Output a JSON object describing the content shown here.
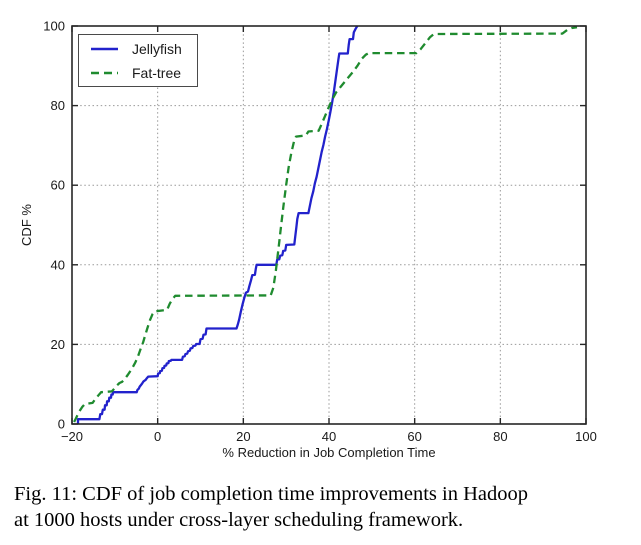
{
  "figure": {
    "caption_line1": "Fig. 11: CDF of job completion time improvements in Hadoop",
    "caption_line2": "at 1000 hosts under cross-layer scheduling framework."
  },
  "colors": {
    "jellyfish_line": "#2222cc",
    "fattree_line": "#1f8b2f",
    "grid": "#999999",
    "frame": "#262626",
    "text": "#1a1a1a"
  },
  "chart_data": {
    "type": "line",
    "title": "",
    "xlabel": "% Reduction in Job Completion Time",
    "ylabel": "CDF %",
    "xlim": [
      -20,
      100
    ],
    "ylim": [
      0,
      100
    ],
    "xticks": [
      -20,
      0,
      20,
      40,
      60,
      80,
      100
    ],
    "xtick_labels": [
      "−20",
      "0",
      "20",
      "40",
      "60",
      "80",
      "100"
    ],
    "yticks": [
      0,
      20,
      40,
      60,
      80,
      100
    ],
    "ytick_labels": [
      "0",
      "20",
      "40",
      "60",
      "80",
      "100"
    ],
    "grid": true,
    "grid_style": "dotted",
    "legend_position": "upper-left",
    "series": [
      {
        "name": "Jellyfish",
        "color": "#2222cc",
        "style": "solid",
        "points": [
          [
            -18.6,
            0
          ],
          [
            -18.6,
            1.2
          ],
          [
            -13.6,
            1.2
          ],
          [
            -13.4,
            2.5
          ],
          [
            -13.0,
            2.5
          ],
          [
            -12.8,
            3.6
          ],
          [
            -12.4,
            3.6
          ],
          [
            -12.3,
            4.7
          ],
          [
            -11.9,
            4.7
          ],
          [
            -11.8,
            5.7
          ],
          [
            -11.4,
            5.7
          ],
          [
            -11.3,
            6.6
          ],
          [
            -10.9,
            6.6
          ],
          [
            -10.8,
            7.4
          ],
          [
            -10.5,
            7.4
          ],
          [
            -10.4,
            8.0
          ],
          [
            -4.9,
            8.0
          ],
          [
            -4.7,
            8.6
          ],
          [
            -4.4,
            8.9
          ],
          [
            -4.2,
            9.4
          ],
          [
            -3.9,
            9.8
          ],
          [
            -3.6,
            10.2
          ],
          [
            -3.3,
            10.7
          ],
          [
            -2.8,
            11.1
          ],
          [
            -2.6,
            11.4
          ],
          [
            -2.2,
            11.9
          ],
          [
            0.0,
            12.0
          ],
          [
            0.1,
            12.7
          ],
          [
            0.5,
            12.8
          ],
          [
            0.6,
            13.3
          ],
          [
            1.0,
            13.4
          ],
          [
            1.1,
            14.0
          ],
          [
            1.5,
            14.1
          ],
          [
            1.6,
            14.6
          ],
          [
            2.0,
            14.7
          ],
          [
            2.1,
            15.2
          ],
          [
            2.5,
            15.3
          ],
          [
            2.6,
            15.8
          ],
          [
            3.1,
            15.9
          ],
          [
            3.2,
            16.1
          ],
          [
            5.7,
            16.1
          ],
          [
            5.9,
            16.9
          ],
          [
            6.3,
            17.0
          ],
          [
            6.5,
            17.6
          ],
          [
            6.9,
            17.7
          ],
          [
            7.1,
            18.3
          ],
          [
            7.5,
            18.4
          ],
          [
            7.7,
            19.0
          ],
          [
            8.1,
            19.1
          ],
          [
            8.3,
            19.6
          ],
          [
            8.8,
            19.7
          ],
          [
            9.0,
            20.1
          ],
          [
            9.8,
            20.1
          ],
          [
            10.0,
            21.3
          ],
          [
            10.5,
            21.4
          ],
          [
            10.7,
            22.4
          ],
          [
            11.2,
            22.5
          ],
          [
            11.4,
            24.0
          ],
          [
            18.4,
            24.0
          ],
          [
            18.7,
            25.0
          ],
          [
            19.0,
            26.2
          ],
          [
            19.4,
            28.2
          ],
          [
            19.8,
            30.0
          ],
          [
            20.2,
            31.6
          ],
          [
            20.6,
            33.0
          ],
          [
            21.1,
            33.3
          ],
          [
            21.4,
            34.6
          ],
          [
            21.8,
            36.1
          ],
          [
            22.1,
            37.4
          ],
          [
            22.7,
            37.5
          ],
          [
            22.9,
            39.0
          ],
          [
            23.1,
            40.0
          ],
          [
            27.7,
            40.0
          ],
          [
            27.9,
            41.3
          ],
          [
            28.4,
            41.4
          ],
          [
            28.6,
            42.3
          ],
          [
            29.1,
            42.4
          ],
          [
            29.3,
            43.5
          ],
          [
            29.8,
            43.6
          ],
          [
            30.0,
            45.0
          ],
          [
            31.9,
            45.1
          ],
          [
            32.1,
            47.0
          ],
          [
            32.4,
            49.5
          ],
          [
            32.6,
            51.5
          ],
          [
            32.9,
            53.0
          ],
          [
            35.2,
            53.0
          ],
          [
            35.5,
            54.6
          ],
          [
            35.9,
            56.7
          ],
          [
            36.3,
            58.4
          ],
          [
            36.7,
            60.5
          ],
          [
            37.1,
            62.1
          ],
          [
            37.5,
            64.2
          ],
          [
            37.9,
            66.3
          ],
          [
            38.3,
            68.4
          ],
          [
            38.7,
            70.1
          ],
          [
            39.1,
            72.2
          ],
          [
            39.5,
            74.1
          ],
          [
            39.9,
            76.1
          ],
          [
            40.3,
            78.3
          ],
          [
            40.7,
            80.6
          ],
          [
            41.1,
            83.2
          ],
          [
            41.5,
            86.2
          ],
          [
            41.9,
            89.3
          ],
          [
            42.2,
            91.6
          ],
          [
            42.4,
            93.1
          ],
          [
            44.4,
            93.1
          ],
          [
            44.6,
            95.2
          ],
          [
            44.8,
            96.7
          ],
          [
            45.6,
            96.7
          ],
          [
            45.8,
            98.4
          ],
          [
            46.2,
            99.3
          ],
          [
            46.6,
            100.0
          ]
        ]
      },
      {
        "name": "Fat-tree",
        "color": "#1f8b2f",
        "style": "dashed",
        "points": [
          [
            -19.5,
            0.5
          ],
          [
            -19.0,
            1.6
          ],
          [
            -18.4,
            3.0
          ],
          [
            -17.6,
            4.3
          ],
          [
            -17.0,
            5.0
          ],
          [
            -15.2,
            5.3
          ],
          [
            -14.6,
            6.2
          ],
          [
            -13.9,
            7.1
          ],
          [
            -13.2,
            8.0
          ],
          [
            -10.7,
            8.2
          ],
          [
            -10.1,
            8.9
          ],
          [
            -9.5,
            9.7
          ],
          [
            -8.9,
            10.3
          ],
          [
            -8.3,
            10.6
          ],
          [
            -7.7,
            11.3
          ],
          [
            -7.0,
            12.3
          ],
          [
            -6.4,
            13.3
          ],
          [
            -5.8,
            14.3
          ],
          [
            -5.2,
            15.5
          ],
          [
            -4.6,
            17.0
          ],
          [
            -4.0,
            18.8
          ],
          [
            -3.4,
            20.5
          ],
          [
            -2.9,
            22.3
          ],
          [
            -2.4,
            24.1
          ],
          [
            -1.8,
            26.1
          ],
          [
            -1.2,
            27.6
          ],
          [
            -0.7,
            28.3
          ],
          [
            2.2,
            28.7
          ],
          [
            2.8,
            30.2
          ],
          [
            3.4,
            31.3
          ],
          [
            4.1,
            32.2
          ],
          [
            26.4,
            32.3
          ],
          [
            27.0,
            34.2
          ],
          [
            27.6,
            38.6
          ],
          [
            28.2,
            44.1
          ],
          [
            28.8,
            49.6
          ],
          [
            29.4,
            55.1
          ],
          [
            30.0,
            60.1
          ],
          [
            30.6,
            64.6
          ],
          [
            31.2,
            68.1
          ],
          [
            31.8,
            70.9
          ],
          [
            32.3,
            72.2
          ],
          [
            34.6,
            72.5
          ],
          [
            35.2,
            73.5
          ],
          [
            37.6,
            73.7
          ],
          [
            38.3,
            75.4
          ],
          [
            39.1,
            77.4
          ],
          [
            39.9,
            79.5
          ],
          [
            40.8,
            81.6
          ],
          [
            41.7,
            83.4
          ],
          [
            42.7,
            84.7
          ],
          [
            43.7,
            86.0
          ],
          [
            44.7,
            87.3
          ],
          [
            45.7,
            88.6
          ],
          [
            46.7,
            90.1
          ],
          [
            47.7,
            91.8
          ],
          [
            48.6,
            92.8
          ],
          [
            49.3,
            93.2
          ],
          [
            60.4,
            93.2
          ],
          [
            61.4,
            94.2
          ],
          [
            62.5,
            95.7
          ],
          [
            63.6,
            97.2
          ],
          [
            64.5,
            98.0
          ],
          [
            94.5,
            98.1
          ],
          [
            95.6,
            99.0
          ],
          [
            96.7,
            99.5
          ],
          [
            97.9,
            99.7
          ]
        ]
      }
    ]
  }
}
